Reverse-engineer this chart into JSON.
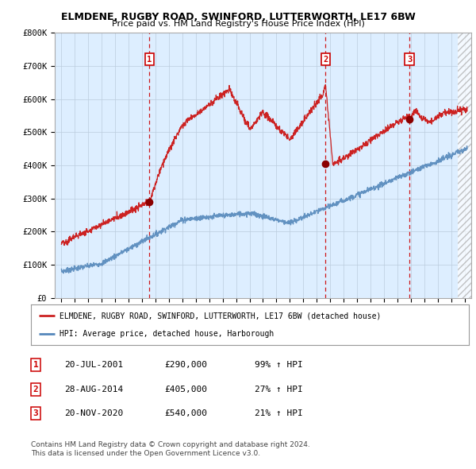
{
  "title1": "ELMDENE, RUGBY ROAD, SWINFORD, LUTTERWORTH, LE17 6BW",
  "title2": "Price paid vs. HM Land Registry's House Price Index (HPI)",
  "ylim": [
    0,
    800000
  ],
  "yticks": [
    0,
    100000,
    200000,
    300000,
    400000,
    500000,
    600000,
    700000,
    800000
  ],
  "ytick_labels": [
    "£0",
    "£100K",
    "£200K",
    "£300K",
    "£400K",
    "£500K",
    "£600K",
    "£700K",
    "£800K"
  ],
  "xlim_start": 1994.5,
  "xlim_end": 2025.5,
  "hatch_start": 2024.5,
  "sale_dates": [
    2001.55,
    2014.66,
    2020.9
  ],
  "sale_prices": [
    290000,
    405000,
    540000
  ],
  "sale_labels": [
    "1",
    "2",
    "3"
  ],
  "vline_color": "#cc0000",
  "sale_dot_color": "#8b0000",
  "hpi_line_color": "#5588bb",
  "price_line_color": "#cc2222",
  "chart_bg_color": "#ddeeff",
  "legend_entries": [
    "ELMDENE, RUGBY ROAD, SWINFORD, LUTTERWORTH, LE17 6BW (detached house)",
    "HPI: Average price, detached house, Harborough"
  ],
  "table_data": [
    [
      "1",
      "20-JUL-2001",
      "£290,000",
      "99% ↑ HPI"
    ],
    [
      "2",
      "28-AUG-2014",
      "£405,000",
      "27% ↑ HPI"
    ],
    [
      "3",
      "20-NOV-2020",
      "£540,000",
      "21% ↑ HPI"
    ]
  ],
  "footer1": "Contains HM Land Registry data © Crown copyright and database right 2024.",
  "footer2": "This data is licensed under the Open Government Licence v3.0.",
  "bg_color": "#ffffff",
  "grid_color": "#bbccdd",
  "box_color": "#cc0000"
}
